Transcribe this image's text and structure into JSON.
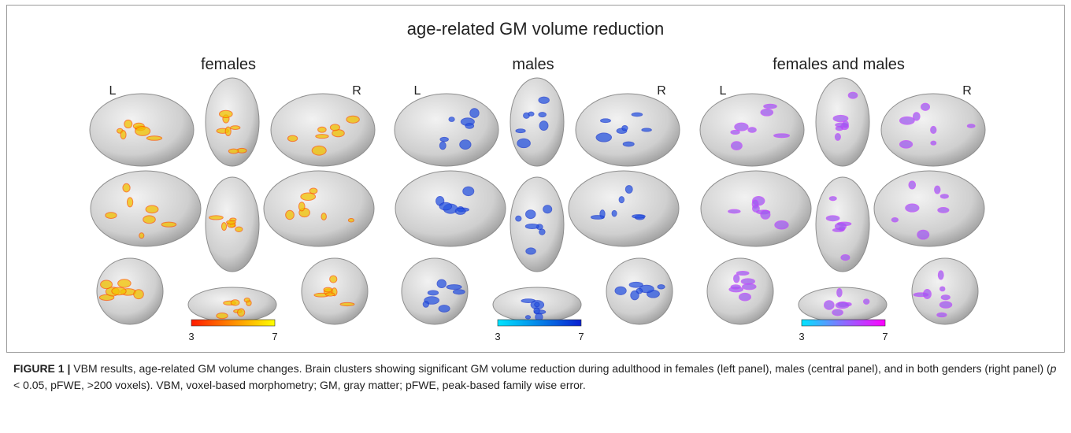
{
  "figure": {
    "title": "age-related GM volume reduction",
    "panels": [
      {
        "title": "females",
        "left_label": "L",
        "right_label": "R",
        "scale_min": "3",
        "scale_max": "7"
      },
      {
        "title": "males",
        "left_label": "L",
        "right_label": "R",
        "scale_min": "3",
        "scale_max": "7"
      },
      {
        "title": "females and males",
        "left_label": "L",
        "right_label": "R",
        "scale_min": "3",
        "scale_max": "7"
      }
    ],
    "caption": {
      "label": "FIGURE 1 |",
      "text_before": " VBM results, age-related GM volume changes. Brain clusters showing significant GM volume reduction during adulthood in females (left panel), males (central panel), and in both genders (right panel) (",
      "italic": "p",
      "text_after": " < 0.05, pFWE, >200 voxels). VBM, voxel-based morphometry; GM, gray matter; pFWE, peak-based family wise error."
    }
  }
}
